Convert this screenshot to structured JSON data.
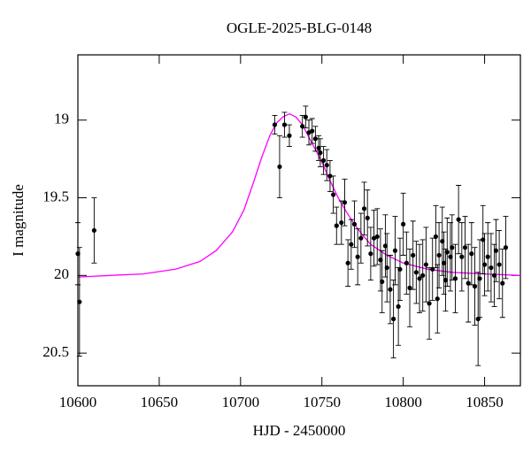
{
  "chart_data": {
    "type": "scatter",
    "title": "OGLE-2025-BLG-0148",
    "x_label": "HJD - 2450000",
    "y_label": "I magnitude",
    "xlim": [
      10600,
      10872
    ],
    "ylim": [
      20.71,
      18.58
    ],
    "xticks": [
      10600,
      10650,
      10700,
      10750,
      10800,
      10850
    ],
    "yticks": [
      19,
      19.5,
      20,
      20.5
    ],
    "series": [
      {
        "color": "#000000",
        "x": [
          10600,
          10601,
          10610,
          10721,
          10724,
          10727,
          10730,
          10738,
          10740,
          10742,
          10744,
          10746,
          10748,
          10749,
          10751,
          10753,
          10755,
          10757,
          10759,
          10762,
          10764,
          10766,
          10768,
          10770,
          10772,
          10774,
          10776,
          10778,
          10780,
          10782,
          10784,
          10786,
          10787,
          10789,
          10790,
          10792,
          10794,
          10795,
          10797,
          10798,
          10800,
          10802,
          10804,
          10806,
          10808,
          10810,
          10812,
          10814,
          10816,
          10818,
          10820,
          10821,
          10822,
          10824,
          10825,
          10826,
          10827,
          10829,
          10830,
          10832,
          10834,
          10836,
          10838,
          10840,
          10842,
          10844,
          10846,
          10847,
          10849,
          10850,
          10852,
          10854,
          10856,
          10857,
          10859,
          10861,
          10863
        ],
        "values": [
          19.86,
          20.17,
          19.71,
          19.03,
          19.3,
          19.03,
          19.1,
          19.04,
          18.98,
          19.08,
          19.07,
          19.12,
          19.18,
          19.21,
          19.26,
          19.29,
          19.36,
          19.48,
          19.68,
          19.66,
          19.53,
          19.92,
          19.8,
          19.67,
          19.88,
          19.76,
          19.57,
          19.63,
          19.86,
          19.76,
          19.75,
          19.9,
          20.04,
          19.81,
          19.95,
          20.09,
          20.28,
          19.84,
          20.2,
          19.96,
          19.67,
          19.92,
          20.08,
          19.87,
          19.98,
          20.02,
          20,
          19.93,
          20.18,
          19.96,
          19.75,
          20.15,
          19.87,
          19.78,
          19.92,
          20.03,
          19.85,
          19.88,
          19.82,
          20.02,
          19.64,
          19.88,
          19.82,
          20.05,
          19.86,
          20.07,
          20.28,
          20.02,
          19.77,
          19.93,
          19.88,
          19.95,
          20,
          19.84,
          19.93,
          20.05,
          19.82
        ],
        "errors": [
          0.2,
          0.35,
          0.21,
          0.06,
          0.2,
          0.08,
          0.07,
          0.07,
          0.07,
          0.08,
          0.08,
          0.08,
          0.08,
          0.09,
          0.09,
          0.1,
          0.1,
          0.12,
          0.12,
          0.14,
          0.15,
          0.15,
          0.16,
          0.15,
          0.18,
          0.16,
          0.17,
          0.18,
          0.17,
          0.18,
          0.18,
          0.2,
          0.2,
          0.2,
          0.22,
          0.22,
          0.25,
          0.22,
          0.25,
          0.2,
          0.2,
          0.2,
          0.25,
          0.22,
          0.2,
          0.22,
          0.23,
          0.24,
          0.23,
          0.2,
          0.2,
          0.22,
          0.21,
          0.22,
          0.2,
          0.2,
          0.22,
          0.22,
          0.21,
          0.22,
          0.22,
          0.22,
          0.2,
          0.25,
          0.2,
          0.25,
          0.3,
          0.25,
          0.22,
          0.2,
          0.22,
          0.22,
          0.2,
          0.2,
          0.22,
          0.22,
          0.2
        ]
      }
    ],
    "model": {
      "color": "#ff00ff",
      "x": [
        10600,
        10620,
        10640,
        10660,
        10675,
        10685,
        10695,
        10702,
        10708,
        10713,
        10718,
        10722,
        10726,
        10730,
        10734,
        10738,
        10742,
        10746,
        10750,
        10755,
        10760,
        10765,
        10770,
        10775,
        10780,
        10790,
        10800,
        10815,
        10830,
        10850,
        10872
      ],
      "values": [
        20.01,
        20,
        19.99,
        19.96,
        19.91,
        19.84,
        19.72,
        19.58,
        19.4,
        19.24,
        19.1,
        19.02,
        18.98,
        18.96,
        18.98,
        19.03,
        19.11,
        19.19,
        19.27,
        19.39,
        19.5,
        19.59,
        19.67,
        19.74,
        19.8,
        19.87,
        19.92,
        19.96,
        19.98,
        19.99,
        20
      ]
    }
  }
}
